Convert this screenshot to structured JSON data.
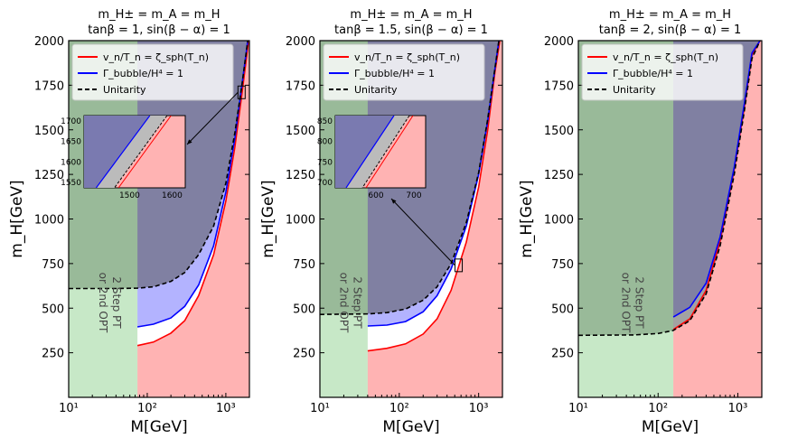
{
  "panels": [
    {
      "title_line1": "m_H± = m_A = m_H",
      "title_line2": "tanβ = 1, sin(β − α) = 1",
      "xlabel": "M[GeV]",
      "ylabel": "m_H[GeV]",
      "xticks": [
        "10¹",
        "10²",
        "10³"
      ],
      "yticks": [
        "250",
        "500",
        "750",
        "1000",
        "1250",
        "1500",
        "1750",
        "2000"
      ],
      "ylim": [
        0,
        2000
      ],
      "xlim_log10": [
        1,
        3.3
      ],
      "green_boundary_M": 75,
      "rotated_label": [
        "2 Step PT",
        "or 2nd OPT"
      ],
      "legend": [
        "v_n/T_n = ζ_sph(T_n)",
        "Γ_bubble/H⁴ = 1",
        "Unitarity"
      ],
      "unitarity": [
        [
          10,
          610
        ],
        [
          40,
          610
        ],
        [
          75,
          612
        ],
        [
          120,
          620
        ],
        [
          200,
          650
        ],
        [
          300,
          700
        ],
        [
          450,
          800
        ],
        [
          700,
          960
        ],
        [
          1000,
          1200
        ],
        [
          1300,
          1480
        ],
        [
          1600,
          1750
        ],
        [
          1900,
          2000
        ]
      ],
      "bubble": [
        [
          75,
          395
        ],
        [
          120,
          410
        ],
        [
          200,
          445
        ],
        [
          300,
          510
        ],
        [
          450,
          630
        ],
        [
          700,
          850
        ],
        [
          1000,
          1150
        ],
        [
          1300,
          1450
        ],
        [
          1600,
          1750
        ],
        [
          1900,
          2000
        ]
      ],
      "sphaleron": [
        [
          75,
          290
        ],
        [
          120,
          310
        ],
        [
          200,
          360
        ],
        [
          300,
          430
        ],
        [
          450,
          570
        ],
        [
          700,
          800
        ],
        [
          1000,
          1100
        ],
        [
          1300,
          1400
        ],
        [
          1600,
          1700
        ],
        [
          1950,
          2000
        ]
      ],
      "inset": {
        "x_ticks": [
          "1500",
          "1600"
        ],
        "y_ticks": [
          "1550",
          "1600",
          "1650",
          "1700"
        ]
      }
    },
    {
      "title_line1": "m_H± = m_A = m_H",
      "title_line2": "tanβ = 1.5, sin(β − α) = 1",
      "xlabel": "M[GeV]",
      "ylabel": "m_H[GeV]",
      "xticks": [
        "10¹",
        "10²",
        "10³"
      ],
      "yticks": [
        "250",
        "500",
        "750",
        "1000",
        "1250",
        "1500",
        "1750",
        "2000"
      ],
      "ylim": [
        0,
        2000
      ],
      "xlim_log10": [
        1,
        3.3
      ],
      "green_boundary_M": 40,
      "rotated_label": [
        "2 Step PT",
        "or 2nd OPT"
      ],
      "legend": [
        "v_n/T_n = ζ_sph(T_n)",
        "Γ_bubble/H⁴ = 1",
        "Unitarity"
      ],
      "unitarity": [
        [
          10,
          465
        ],
        [
          40,
          468
        ],
        [
          70,
          475
        ],
        [
          120,
          495
        ],
        [
          200,
          545
        ],
        [
          300,
          620
        ],
        [
          450,
          750
        ],
        [
          700,
          980
        ],
        [
          1000,
          1260
        ],
        [
          1300,
          1560
        ],
        [
          1600,
          1840
        ],
        [
          1800,
          2000
        ]
      ],
      "bubble": [
        [
          40,
          400
        ],
        [
          70,
          405
        ],
        [
          120,
          425
        ],
        [
          200,
          480
        ],
        [
          300,
          570
        ],
        [
          450,
          720
        ],
        [
          700,
          960
        ],
        [
          1000,
          1250
        ],
        [
          1300,
          1550
        ],
        [
          1600,
          1840
        ],
        [
          1800,
          2000
        ]
      ],
      "sphaleron": [
        [
          40,
          260
        ],
        [
          70,
          275
        ],
        [
          120,
          300
        ],
        [
          200,
          355
        ],
        [
          300,
          440
        ],
        [
          450,
          600
        ],
        [
          700,
          870
        ],
        [
          1000,
          1180
        ],
        [
          1300,
          1500
        ],
        [
          1600,
          1820
        ],
        [
          1850,
          2000
        ]
      ],
      "inset": {
        "x_ticks": [
          "600",
          "700"
        ],
        "y_ticks": [
          "700",
          "750",
          "800",
          "850"
        ]
      }
    },
    {
      "title_line1": "m_H± = m_A = m_H",
      "title_line2": "tanβ = 2, sin(β − α) = 1",
      "xlabel": "M[GeV]",
      "ylabel": "m_H[GeV]",
      "xticks": [
        "10¹",
        "10²",
        "10³"
      ],
      "yticks": [
        "250",
        "500",
        "750",
        "1000",
        "1250",
        "1500",
        "1750",
        "2000"
      ],
      "ylim": [
        0,
        2000
      ],
      "xlim_log10": [
        1,
        3.3
      ],
      "green_boundary_M": 155,
      "rotated_label": [
        "2 Step PT",
        "or 2nd OPT"
      ],
      "legend": [
        "v_n/T_n = ζ_sph(T_n)",
        "Γ_bubble/H⁴ = 1",
        "Unitarity"
      ],
      "unitarity": [
        [
          10,
          348
        ],
        [
          50,
          350
        ],
        [
          100,
          358
        ],
        [
          155,
          375
        ],
        [
          250,
          430
        ],
        [
          400,
          580
        ],
        [
          600,
          850
        ],
        [
          900,
          1250
        ],
        [
          1200,
          1600
        ],
        [
          1500,
          1900
        ],
        [
          1900,
          2000
        ]
      ],
      "bubble": [
        [
          155,
          450
        ],
        [
          250,
          505
        ],
        [
          400,
          640
        ],
        [
          600,
          900
        ],
        [
          900,
          1290
        ],
        [
          1200,
          1640
        ],
        [
          1500,
          1930
        ],
        [
          1900,
          2000
        ]
      ],
      "sphaleron": [
        [
          155,
          380
        ],
        [
          250,
          440
        ],
        [
          400,
          600
        ],
        [
          600,
          880
        ],
        [
          900,
          1280
        ],
        [
          1200,
          1620
        ],
        [
          1500,
          1920
        ],
        [
          1900,
          2000
        ]
      ],
      "inset": null
    }
  ]
}
